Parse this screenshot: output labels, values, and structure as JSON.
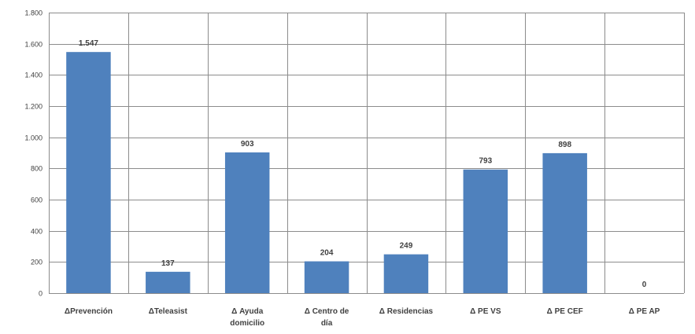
{
  "chart_data": {
    "type": "bar",
    "categories": [
      [
        "ΔPrevención"
      ],
      [
        "ΔTeleasist"
      ],
      [
        "Δ Ayuda",
        "domicilio"
      ],
      [
        "Δ Centro de",
        "día"
      ],
      [
        "Δ Residencias"
      ],
      [
        "Δ PE VS"
      ],
      [
        "Δ PE CEF"
      ],
      [
        "Δ PE AP"
      ]
    ],
    "values": [
      1547,
      137,
      903,
      204,
      249,
      793,
      898,
      0
    ],
    "value_labels": [
      "1.547",
      "137",
      "903",
      "204",
      "249",
      "793",
      "898",
      "0"
    ],
    "ylim": [
      0,
      1800
    ],
    "yticks": [
      0,
      200,
      400,
      600,
      800,
      1000,
      1200,
      1400,
      1600,
      1800
    ],
    "ytick_labels": [
      "0",
      "200",
      "400",
      "600",
      "800",
      "1.000",
      "1.200",
      "1.400",
      "1.600",
      "1.800"
    ],
    "bar_color": "#4f81bd",
    "grid": "horizontal and vertical category separators",
    "legend": "none"
  }
}
